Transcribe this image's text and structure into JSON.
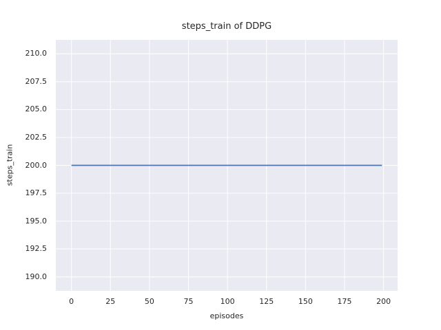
{
  "figure": {
    "background": "#FFFFFF"
  },
  "chart_data": {
    "type": "line",
    "title": "steps_train of DDPG",
    "xlabel": "episodes",
    "ylabel": "steps_train",
    "plot_background": "#EAEAF2",
    "grid": true,
    "grid_color": "#FFFFFF",
    "legend": false,
    "xlim": [
      -10,
      209
    ],
    "ylim": [
      188.75,
      211.25
    ],
    "x_tick_values": [
      0,
      25,
      50,
      75,
      100,
      125,
      150,
      175,
      200
    ],
    "x_tick_labels": [
      "0",
      "25",
      "50",
      "75",
      "100",
      "125",
      "150",
      "175",
      "200"
    ],
    "y_tick_values": [
      190,
      192.5,
      195,
      197.5,
      200,
      202.5,
      205,
      207.5,
      210
    ],
    "y_tick_labels": [
      "190.0",
      "192.5",
      "195.0",
      "197.5",
      "200.0",
      "202.5",
      "205.0",
      "207.5",
      "210.0"
    ],
    "series": [
      {
        "name": "steps_train",
        "color": "#4C72B0",
        "line_width": 1.8,
        "x": [
          0,
          199
        ],
        "y": [
          200,
          200
        ]
      }
    ]
  }
}
